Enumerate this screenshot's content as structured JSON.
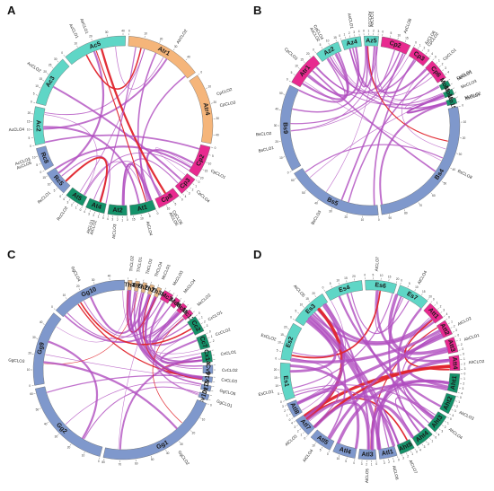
{
  "colors": {
    "teal": "#5fd6c6",
    "orange": "#f5b57a",
    "blue": "#7f98cc",
    "pink": "#e8298f",
    "green": "#15926a",
    "tan": "#e9b784",
    "purple_link": "#b04dbf",
    "red_link": "#e0242c"
  },
  "panels": [
    {
      "letter": "A",
      "chromosomes": [
        {
          "name": "Ac5",
          "color": "teal",
          "len": 50
        },
        {
          "name": "Atr1",
          "color": "orange",
          "len": 60
        },
        {
          "name": "Atr4",
          "color": "orange",
          "len": 55
        },
        {
          "name": "Cp2",
          "color": "pink",
          "len": 25
        },
        {
          "name": "Cp3",
          "color": "pink",
          "len": 15
        },
        {
          "name": "Cp8",
          "color": "pink",
          "len": 18
        },
        {
          "name": "At1",
          "color": "green",
          "len": 20
        },
        {
          "name": "At2",
          "color": "green",
          "len": 15
        },
        {
          "name": "At4",
          "color": "green",
          "len": 15
        },
        {
          "name": "At5",
          "color": "green",
          "len": 15
        },
        {
          "name": "Rc5",
          "color": "blue",
          "len": 20
        },
        {
          "name": "Rc8",
          "color": "blue",
          "len": 18
        },
        {
          "name": "Ac2",
          "color": "teal",
          "len": 30
        },
        {
          "name": "Ac3",
          "color": "teal",
          "len": 40
        }
      ],
      "genes": [
        "AcCLO1",
        "AtrCLO1",
        "AtrCLO2",
        "CpCLO2",
        "CpCLO3",
        "CpCLO1",
        "CpCLO4",
        "CpCLO5",
        "AtCLO5",
        "AtCLO4",
        "AtCLO3",
        "AtCLO2",
        "AtCLO1",
        "RcCLO2",
        "RcCLO1",
        "AcCLO5",
        "AcCLO3",
        "AcCLO4",
        "AcCLO2"
      ]
    },
    {
      "letter": "B",
      "chromosomes": [
        {
          "name": "Bs9",
          "color": "blue",
          "len": 90
        },
        {
          "name": "Atr1",
          "color": "pink",
          "len": 35
        },
        {
          "name": "Az2",
          "color": "teal",
          "len": 25
        },
        {
          "name": "Az4",
          "color": "teal",
          "len": 20
        },
        {
          "name": "Az5",
          "color": "teal",
          "len": 15
        },
        {
          "name": "Cp2",
          "color": "pink",
          "len": 30
        },
        {
          "name": "Cp3",
          "color": "pink",
          "len": 20
        },
        {
          "name": "Cp6",
          "color": "pink",
          "len": 22
        },
        {
          "name": "Mo11",
          "color": "green",
          "len": 6
        },
        {
          "name": "Mo13",
          "color": "green",
          "len": 6
        },
        {
          "name": "Mo15",
          "color": "green",
          "len": 6
        },
        {
          "name": "Bs4",
          "color": "blue",
          "len": 150
        },
        {
          "name": "Bs5",
          "color": "blue",
          "len": 100
        }
      ],
      "genes": [
        "BsCLO1",
        "BsCLO2",
        "CpCLO3",
        "AsCLO2",
        "CpCLO4",
        "AsCLO1",
        "AzCLO3",
        "AzCLO1",
        "AzCLO8",
        "AzCLO6",
        "CpCLO2",
        "CpCLO1",
        "CpCLO4",
        "MoCLO1",
        "MoCLO3",
        "MoCLO2",
        "BsCLO7",
        "BsCLO8",
        "BsCLO3"
      ]
    },
    {
      "letter": "C",
      "chromosomes": [
        {
          "name": "Gg9",
          "color": "blue",
          "len": 55
        },
        {
          "name": "Gg10",
          "color": "blue",
          "len": 55
        },
        {
          "name": "Th4",
          "color": "tan",
          "len": 3
        },
        {
          "name": "Th9",
          "color": "tan",
          "len": 3
        },
        {
          "name": "Th26",
          "color": "tan",
          "len": 3
        },
        {
          "name": "Th27",
          "color": "tan",
          "len": 3
        },
        {
          "name": "Th33",
          "color": "tan",
          "len": 3
        },
        {
          "name": "Mc3",
          "color": "pink",
          "len": 7
        },
        {
          "name": "Mc8",
          "color": "pink",
          "len": 4
        },
        {
          "name": "Mc11",
          "color": "pink",
          "len": 4
        },
        {
          "name": "Mc13",
          "color": "pink",
          "len": 4
        },
        {
          "name": "Cc2",
          "color": "green",
          "len": 12
        },
        {
          "name": "Cc7",
          "color": "green",
          "len": 10
        },
        {
          "name": "Cx14",
          "color": "green",
          "len": 8
        },
        {
          "name": "Cv9",
          "color": "blue",
          "len": 6
        },
        {
          "name": "Cv14",
          "color": "blue",
          "len": 4
        },
        {
          "name": "Cv15",
          "color": "blue",
          "len": 4
        },
        {
          "name": "Cv101",
          "color": "blue",
          "len": 4
        },
        {
          "name": "Gg1",
          "color": "blue",
          "len": 90
        },
        {
          "name": "Gg2",
          "color": "blue",
          "len": 70
        }
      ],
      "genes": [
        "GgCLO3",
        "GgCLO4",
        "ThCLO2",
        "ThCLO1",
        "ThCLO3",
        "ThCLO4",
        "McCLO1",
        "McCLO3",
        "McCLO4",
        "McCLO2",
        "CcCLO1",
        "CcCLO2",
        "CvCLO1",
        "CvCLO2",
        "CvCLO3",
        "GgCLO5",
        "GgCLO1",
        "GgCLO2"
      ]
    },
    {
      "letter": "D",
      "chromosomes": [
        {
          "name": "Es1",
          "color": "teal",
          "len": 30
        },
        {
          "name": "Es2",
          "color": "teal",
          "len": 30
        },
        {
          "name": "Es3",
          "color": "teal",
          "len": 30
        },
        {
          "name": "Es4",
          "color": "teal",
          "len": 30
        },
        {
          "name": "Es6",
          "color": "teal",
          "len": 25
        },
        {
          "name": "Es7",
          "color": "teal",
          "len": 25
        },
        {
          "name": "Att1",
          "color": "pink",
          "len": 15
        },
        {
          "name": "Att2",
          "color": "pink",
          "len": 12
        },
        {
          "name": "Att3",
          "color": "pink",
          "len": 12
        },
        {
          "name": "Att4",
          "color": "pink",
          "len": 12
        },
        {
          "name": "Aht1",
          "color": "green",
          "len": 15
        },
        {
          "name": "Aht2",
          "color": "green",
          "len": 15
        },
        {
          "name": "Aht3",
          "color": "green",
          "len": 15
        },
        {
          "name": "Aht4",
          "color": "green",
          "len": 15
        },
        {
          "name": "Aht5",
          "color": "green",
          "len": 12
        },
        {
          "name": "Atl1",
          "color": "blue",
          "len": 14
        },
        {
          "name": "Atl3",
          "color": "blue",
          "len": 14
        },
        {
          "name": "Atl4",
          "color": "blue",
          "len": 18
        },
        {
          "name": "Atl5",
          "color": "blue",
          "len": 18
        },
        {
          "name": "Atl7",
          "color": "blue",
          "len": 15
        },
        {
          "name": "Atl8",
          "color": "blue",
          "len": 12
        }
      ],
      "genes": [
        "EsCLO1",
        "EsCLO2",
        "AtCLO5",
        "AtCLO7",
        "AtCLO4",
        "AtCLO2",
        "AhCLO1",
        "AhCLO2",
        "AhCLO3",
        "AhCLO4",
        "AlCLO7",
        "AlCLO6",
        "AlCLO5",
        "AlCLO4",
        "AlCLO3"
      ]
    }
  ]
}
